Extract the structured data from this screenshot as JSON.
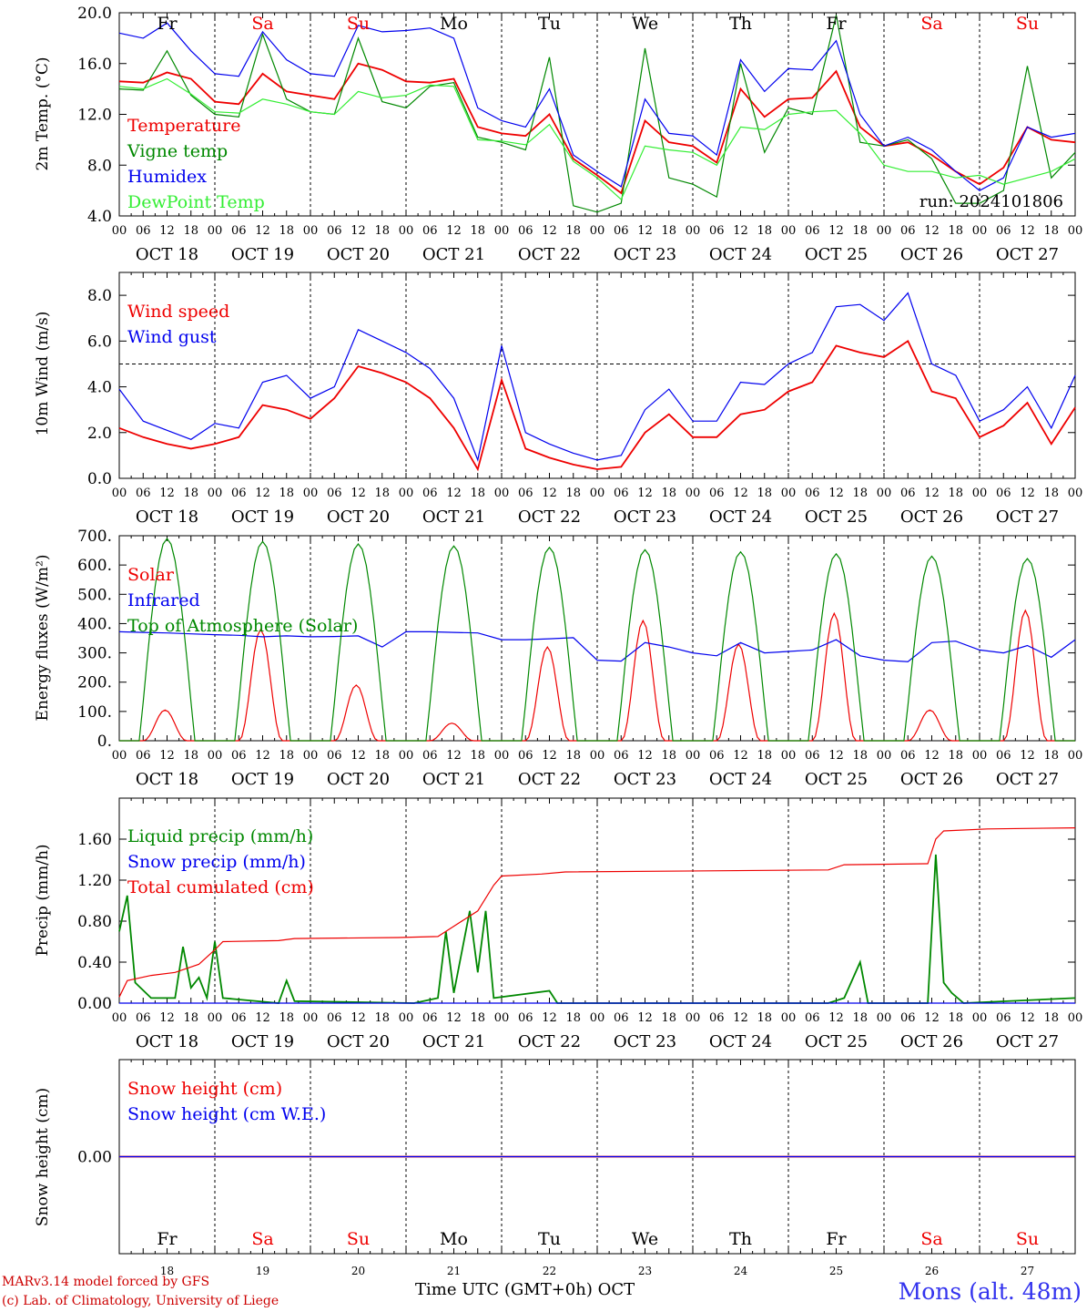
{
  "chart_data": [
    {
      "type": "line",
      "ylabel": "2m Temp. (°C)",
      "ylim": [
        4.0,
        20.0
      ],
      "yticks": [
        "4.0",
        "8.0",
        "12.0",
        "16.0",
        "20.0"
      ],
      "annotation": "run: 2024101806",
      "x_hours": [
        0,
        6,
        12,
        18,
        24,
        30,
        36,
        42,
        48,
        54,
        60,
        66,
        72,
        78,
        84,
        90,
        96,
        102,
        108,
        114,
        120,
        126,
        132,
        138,
        144,
        150,
        156,
        162,
        168,
        174,
        180,
        186,
        192,
        198,
        204,
        210,
        216,
        222,
        228,
        234,
        240
      ],
      "series": [
        {
          "name": "Temperature",
          "color": "#ee0000",
          "values": [
            14.6,
            14.5,
            15.3,
            14.8,
            13.0,
            12.8,
            15.2,
            13.8,
            13.5,
            13.2,
            16.0,
            15.5,
            14.6,
            14.5,
            14.8,
            11.0,
            10.5,
            10.3,
            12.0,
            8.5,
            7.2,
            5.8,
            11.5,
            9.8,
            9.5,
            8.2,
            14.0,
            11.8,
            13.2,
            13.3,
            15.4,
            11.0,
            9.5,
            9.8,
            8.8,
            7.5,
            6.5,
            7.8,
            11.0,
            10.0,
            9.8
          ]
        },
        {
          "name": "Vigne temp",
          "color": "#008800",
          "values": [
            14.0,
            13.9,
            17.0,
            13.5,
            12.0,
            11.8,
            18.3,
            13.2,
            12.2,
            12.0,
            18.0,
            13.0,
            12.5,
            14.2,
            14.5,
            10.2,
            9.8,
            9.2,
            16.5,
            4.8,
            4.3,
            5.0,
            17.2,
            7.0,
            6.5,
            5.5,
            16.0,
            9.0,
            12.5,
            12.0,
            19.8,
            9.8,
            9.5,
            10.0,
            8.5,
            5.0,
            5.0,
            6.0,
            15.8,
            7.0,
            9.0
          ]
        },
        {
          "name": "Humidex",
          "color": "#0000ee",
          "values": [
            18.4,
            18.0,
            19.2,
            17.0,
            15.2,
            15.0,
            18.5,
            16.3,
            15.2,
            15.0,
            19.0,
            18.5,
            18.6,
            18.8,
            18.0,
            12.5,
            11.5,
            11.0,
            14.0,
            8.8,
            7.5,
            6.3,
            13.2,
            10.5,
            10.3,
            8.8,
            16.3,
            13.8,
            15.6,
            15.5,
            17.8,
            12.0,
            9.5,
            10.2,
            9.2,
            7.5,
            6.0,
            7.0,
            11.0,
            10.2,
            10.5
          ]
        },
        {
          "name": "DewPoint Temp",
          "color": "#33ee33",
          "values": [
            14.2,
            14.0,
            14.8,
            13.6,
            12.2,
            12.1,
            13.2,
            12.8,
            12.2,
            12.0,
            13.8,
            13.3,
            13.5,
            14.3,
            14.2,
            10.0,
            9.9,
            9.6,
            11.2,
            8.3,
            7.0,
            5.3,
            9.5,
            9.2,
            9.0,
            8.0,
            11.0,
            10.8,
            12.0,
            12.2,
            12.3,
            10.5,
            8.0,
            7.5,
            7.5,
            7.0,
            7.2,
            6.5,
            7.0,
            7.5,
            8.5
          ]
        }
      ]
    },
    {
      "type": "line",
      "ylabel": "10m Wind (m/s)",
      "ylim": [
        0.0,
        9.0
      ],
      "yticks": [
        "0.0",
        "2.0",
        "4.0",
        "6.0",
        "8.0"
      ],
      "reference_line": 5.0,
      "x_hours": [
        0,
        6,
        12,
        18,
        24,
        30,
        36,
        42,
        48,
        54,
        60,
        66,
        72,
        78,
        84,
        90,
        96,
        102,
        108,
        114,
        120,
        126,
        132,
        138,
        144,
        150,
        156,
        162,
        168,
        174,
        180,
        186,
        192,
        198,
        204,
        210,
        216,
        222,
        228,
        234,
        240
      ],
      "series": [
        {
          "name": "Wind speed",
          "color": "#ee0000",
          "values": [
            2.2,
            1.8,
            1.5,
            1.3,
            1.5,
            1.8,
            3.2,
            3.0,
            2.6,
            3.5,
            4.9,
            4.6,
            4.2,
            3.5,
            2.2,
            0.4,
            4.3,
            1.3,
            0.9,
            0.6,
            0.4,
            0.5,
            2.0,
            2.8,
            1.8,
            1.8,
            2.8,
            3.0,
            3.8,
            4.2,
            5.8,
            5.5,
            5.3,
            6.0,
            3.8,
            3.5,
            1.8,
            2.3,
            3.3,
            1.5,
            3.1
          ]
        },
        {
          "name": "Wind gust",
          "color": "#0000ee",
          "values": [
            3.9,
            2.5,
            2.1,
            1.7,
            2.4,
            2.2,
            4.2,
            4.5,
            3.5,
            4.0,
            6.5,
            6.0,
            5.5,
            4.8,
            3.5,
            0.8,
            5.8,
            2.0,
            1.5,
            1.1,
            0.8,
            1.0,
            3.0,
            3.9,
            2.5,
            2.5,
            4.2,
            4.1,
            5.0,
            5.5,
            7.5,
            7.6,
            6.9,
            8.1,
            5.0,
            4.5,
            2.5,
            3.0,
            4.0,
            2.2,
            4.5
          ]
        }
      ]
    },
    {
      "type": "line",
      "ylabel": "Energy fluxes (W/m²)",
      "ylim": [
        0,
        700
      ],
      "yticks": [
        "0.",
        "100.",
        "200.",
        "300.",
        "400.",
        "500.",
        "600.",
        "700."
      ],
      "series": [
        {
          "name": "Solar",
          "color": "#ee0000",
          "peaks": [
            105,
            380,
            190,
            60,
            320,
            410,
            330,
            435,
            105,
            445
          ]
        },
        {
          "name": "Infrared",
          "color": "#0000ee",
          "x_hours": [
            0,
            6,
            12,
            18,
            24,
            30,
            36,
            42,
            48,
            54,
            60,
            66,
            72,
            78,
            84,
            90,
            96,
            102,
            108,
            114,
            120,
            126,
            132,
            138,
            144,
            150,
            156,
            162,
            168,
            174,
            180,
            186,
            192,
            198,
            204,
            210,
            216,
            222,
            228,
            234,
            240
          ],
          "values": [
            372,
            370,
            368,
            365,
            362,
            360,
            355,
            358,
            355,
            356,
            358,
            320,
            372,
            372,
            370,
            368,
            345,
            345,
            348,
            352,
            275,
            272,
            335,
            320,
            300,
            290,
            335,
            300,
            305,
            310,
            345,
            290,
            275,
            270,
            335,
            340,
            310,
            300,
            325,
            285,
            345
          ]
        },
        {
          "name": "Top of Atmosphere (Solar)",
          "color": "#008800",
          "peaks": [
            690,
            680,
            672,
            665,
            660,
            652,
            645,
            638,
            630,
            622
          ]
        }
      ]
    },
    {
      "type": "line",
      "ylabel": "Precip (mm/h)",
      "ylim": [
        0.0,
        2.0
      ],
      "yticks": [
        "0.00",
        "0.40",
        "0.80",
        "1.20",
        "1.60"
      ],
      "series": [
        {
          "name": "Liquid precip (mm/h)",
          "color": "#008800",
          "points": [
            [
              0,
              0.7
            ],
            [
              2,
              1.05
            ],
            [
              4,
              0.2
            ],
            [
              8,
              0.05
            ],
            [
              14,
              0.05
            ],
            [
              16,
              0.55
            ],
            [
              18,
              0.15
            ],
            [
              20,
              0.25
            ],
            [
              22,
              0.05
            ],
            [
              24,
              0.6
            ],
            [
              26,
              0.05
            ],
            [
              40,
              0.0
            ],
            [
              42,
              0.22
            ],
            [
              44,
              0.02
            ],
            [
              74,
              0.0
            ],
            [
              80,
              0.05
            ],
            [
              82,
              0.7
            ],
            [
              84,
              0.1
            ],
            [
              88,
              0.9
            ],
            [
              90,
              0.3
            ],
            [
              92,
              0.9
            ],
            [
              94,
              0.05
            ],
            [
              108,
              0.12
            ],
            [
              110,
              0.0
            ],
            [
              178,
              0.0
            ],
            [
              182,
              0.05
            ],
            [
              186,
              0.4
            ],
            [
              188,
              0.0
            ],
            [
              203,
              0.0
            ],
            [
              205,
              1.45
            ],
            [
              207,
              0.2
            ],
            [
              209,
              0.1
            ],
            [
              212,
              0.0
            ],
            [
              240,
              0.05
            ]
          ]
        },
        {
          "name": "Snow precip (mm/h)",
          "color": "#0000ee",
          "points": [
            [
              0,
              0.0
            ],
            [
              240,
              0.0
            ]
          ]
        },
        {
          "name": "Total cumulated (cm)",
          "color": "#ee0000",
          "points": [
            [
              0,
              0.06
            ],
            [
              2,
              0.22
            ],
            [
              8,
              0.27
            ],
            [
              14,
              0.3
            ],
            [
              20,
              0.38
            ],
            [
              24,
              0.52
            ],
            [
              26,
              0.6
            ],
            [
              40,
              0.61
            ],
            [
              44,
              0.63
            ],
            [
              70,
              0.64
            ],
            [
              80,
              0.65
            ],
            [
              84,
              0.75
            ],
            [
              90,
              0.9
            ],
            [
              94,
              1.15
            ],
            [
              96,
              1.24
            ],
            [
              106,
              1.26
            ],
            [
              112,
              1.28
            ],
            [
              178,
              1.3
            ],
            [
              182,
              1.35
            ],
            [
              203,
              1.36
            ],
            [
              205,
              1.6
            ],
            [
              207,
              1.68
            ],
            [
              218,
              1.7
            ],
            [
              240,
              1.71
            ]
          ]
        }
      ]
    },
    {
      "type": "line",
      "ylabel": "Snow height (cm)",
      "yticks": [
        "0.00"
      ],
      "series": [
        {
          "name": "Snow height (cm)",
          "color": "#ee0000",
          "values": [
            0.0,
            0.0
          ]
        },
        {
          "name": "Snow height (cm W.E.)",
          "color": "#0000ee",
          "values": [
            0.0,
            0.0
          ]
        }
      ]
    }
  ],
  "x_axis": {
    "hour_labels": [
      "00",
      "06",
      "12",
      "18"
    ],
    "end_label": "00",
    "dates": [
      "OCT 18",
      "OCT 19",
      "OCT 20",
      "OCT 21",
      "OCT 22",
      "OCT 23",
      "OCT 24",
      "OCT 25",
      "OCT 26",
      "OCT 27"
    ],
    "weekdays": [
      {
        "label": "Fr",
        "color": "#000000"
      },
      {
        "label": "Sa",
        "color": "#ee0000"
      },
      {
        "label": "Su",
        "color": "#ee0000"
      },
      {
        "label": "Mo",
        "color": "#000000"
      },
      {
        "label": "Tu",
        "color": "#000000"
      },
      {
        "label": "We",
        "color": "#000000"
      },
      {
        "label": "Th",
        "color": "#000000"
      },
      {
        "label": "Fr",
        "color": "#000000"
      },
      {
        "label": "Sa",
        "color": "#ee0000"
      },
      {
        "label": "Su",
        "color": "#ee0000"
      }
    ],
    "day_numbers": [
      "18",
      "19",
      "20",
      "21",
      "22",
      "23",
      "24",
      "25",
      "26",
      "27"
    ],
    "bottom_title": "Time UTC (GMT+0h)",
    "bottom_month": "OCT"
  },
  "footer": {
    "model_line": "MARv3.14 model forced by GFS",
    "credit_line": "(c) Lab. of Climatology, University of Liege",
    "station": "Mons (alt. 48m)"
  }
}
